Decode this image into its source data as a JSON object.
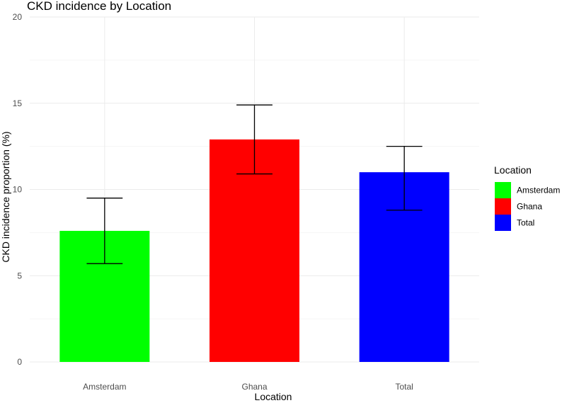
{
  "chart_data": {
    "type": "bar",
    "title": "CKD incidence by Location",
    "xlabel": "Location",
    "ylabel": "CKD incidence proportion (%)",
    "categories": [
      "Amsterdam",
      "Ghana",
      "Total"
    ],
    "values": [
      7.6,
      12.9,
      11.0
    ],
    "error_lower": [
      5.7,
      10.9,
      8.8
    ],
    "error_upper": [
      9.5,
      14.9,
      12.5
    ],
    "colors": [
      "#00ff00",
      "#ff0000",
      "#0000ff"
    ],
    "ylim": [
      0,
      20
    ],
    "yticks": [
      0,
      5,
      10,
      15,
      20
    ],
    "ytick_labels": [
      "0",
      "5",
      "10",
      "15",
      "20"
    ],
    "grid": true,
    "legend": {
      "title": "Location",
      "position": "right",
      "entries": [
        "Amsterdam",
        "Ghana",
        "Total"
      ]
    }
  }
}
